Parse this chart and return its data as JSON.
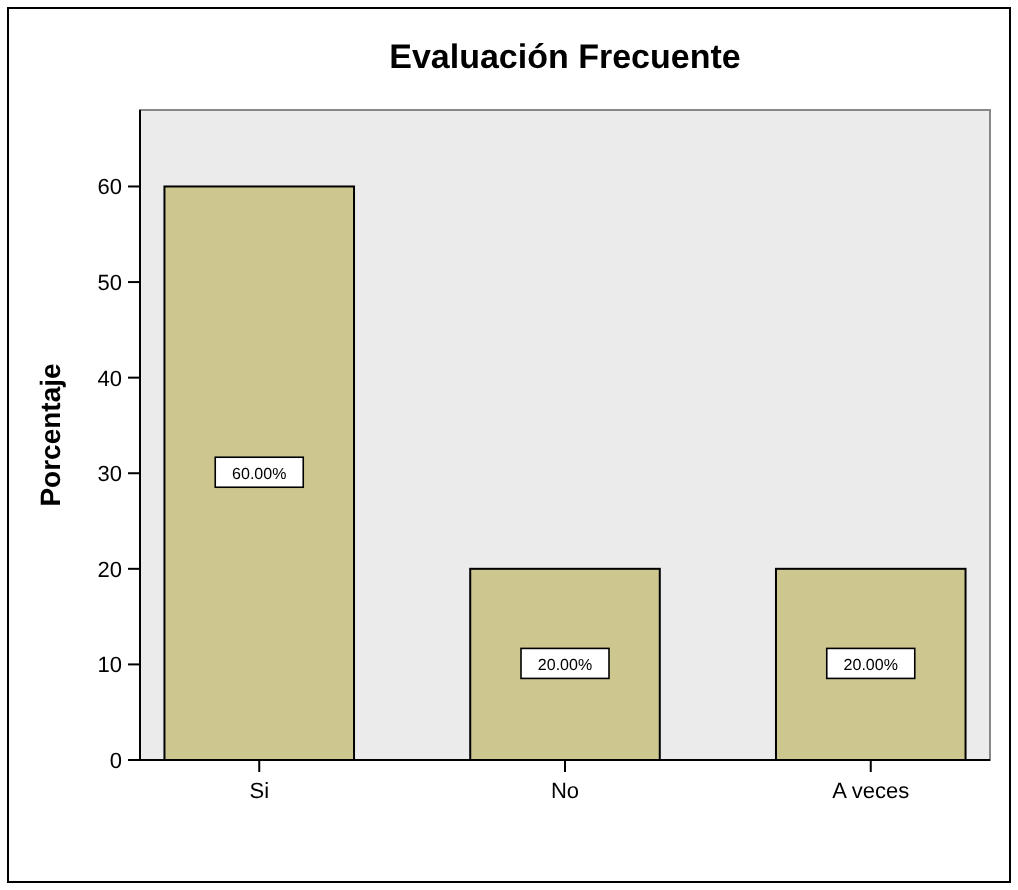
{
  "chart_data": {
    "type": "bar",
    "title": "Evaluación Frecuente",
    "ylabel": "Porcentaje",
    "categories": [
      "Si",
      "No",
      "A veces"
    ],
    "values": [
      60,
      20,
      20
    ],
    "value_labels": [
      "60.00%",
      "20.00%",
      "20.00%"
    ],
    "color": "#cdc68e",
    "ylim": [
      0,
      68
    ],
    "yticks": [
      0,
      10,
      20,
      30,
      40,
      50,
      60
    ],
    "grid": false
  }
}
